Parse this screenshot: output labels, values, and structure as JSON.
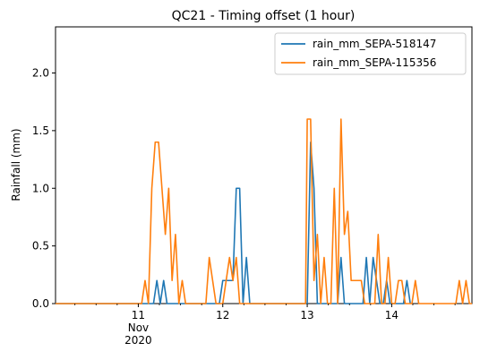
{
  "chart_data": {
    "type": "line",
    "title": "QC21 - Timing offset (1 hour)",
    "xlabel": "",
    "ylabel": "Rainfall (mm)",
    "ylim": [
      0,
      2.4
    ],
    "xlim": [
      -0.98,
      3.95
    ],
    "yticks": [
      0.0,
      0.5,
      1.0,
      1.5,
      2.0
    ],
    "ytick_labels": [
      "0.0",
      "0.5",
      "1.0",
      "1.5",
      "2.0"
    ],
    "xticks": [
      0,
      1,
      2,
      3
    ],
    "xtick_labels": [
      "11\nNov\n2020",
      "12",
      "13",
      "14"
    ],
    "x_units": "days from 2020-11-11",
    "legend": "top-right",
    "grid": false,
    "series": [
      {
        "name": "rain_mm_SEPA-518147",
        "color": "#1f77b4",
        "points": [
          [
            -0.98,
            0
          ],
          [
            0.18,
            0
          ],
          [
            0.22,
            0.2
          ],
          [
            0.26,
            0
          ],
          [
            0.3,
            0.2
          ],
          [
            0.34,
            0
          ],
          [
            0.96,
            0
          ],
          [
            1.0,
            0.2
          ],
          [
            1.04,
            0.2
          ],
          [
            1.08,
            0.2
          ],
          [
            1.12,
            0.2
          ],
          [
            1.16,
            1.0
          ],
          [
            1.2,
            1.0
          ],
          [
            1.24,
            0
          ],
          [
            1.28,
            0.4
          ],
          [
            1.32,
            0
          ],
          [
            2.0,
            0
          ],
          [
            2.04,
            1.4
          ],
          [
            2.08,
            1.0
          ],
          [
            2.12,
            0
          ],
          [
            2.36,
            0
          ],
          [
            2.4,
            0.4
          ],
          [
            2.44,
            0
          ],
          [
            2.66,
            0
          ],
          [
            2.7,
            0.4
          ],
          [
            2.74,
            0
          ],
          [
            2.78,
            0.4
          ],
          [
            2.82,
            0.2
          ],
          [
            2.86,
            0
          ],
          [
            2.9,
            0
          ],
          [
            2.94,
            0.2
          ],
          [
            2.98,
            0
          ],
          [
            3.14,
            0
          ],
          [
            3.18,
            0.2
          ],
          [
            3.22,
            0
          ]
        ]
      },
      {
        "name": "rain_mm_SEPA-115356",
        "color": "#ff7f0e",
        "points": [
          [
            -0.98,
            0
          ],
          [
            0.04,
            0
          ],
          [
            0.08,
            0.2
          ],
          [
            0.12,
            0
          ],
          [
            0.16,
            1.0
          ],
          [
            0.2,
            1.4
          ],
          [
            0.24,
            1.4
          ],
          [
            0.28,
            1.0
          ],
          [
            0.32,
            0.6
          ],
          [
            0.36,
            1.0
          ],
          [
            0.4,
            0.2
          ],
          [
            0.44,
            0.6
          ],
          [
            0.48,
            0
          ],
          [
            0.52,
            0.2
          ],
          [
            0.56,
            0
          ],
          [
            0.8,
            0
          ],
          [
            0.84,
            0.4
          ],
          [
            0.88,
            0.2
          ],
          [
            0.92,
            0
          ],
          [
            1.0,
            0
          ],
          [
            1.04,
            0.2
          ],
          [
            1.08,
            0.4
          ],
          [
            1.12,
            0.2
          ],
          [
            1.16,
            0.4
          ],
          [
            1.2,
            0
          ],
          [
            1.98,
            0
          ],
          [
            2.0,
            1.6
          ],
          [
            2.04,
            1.6
          ],
          [
            2.08,
            0.2
          ],
          [
            2.12,
            0.6
          ],
          [
            2.16,
            0
          ],
          [
            2.2,
            0.4
          ],
          [
            2.24,
            0
          ],
          [
            2.28,
            0
          ],
          [
            2.32,
            1.0
          ],
          [
            2.36,
            0
          ],
          [
            2.4,
            1.6
          ],
          [
            2.44,
            0.6
          ],
          [
            2.48,
            0.8
          ],
          [
            2.52,
            0.2
          ],
          [
            2.56,
            0.2
          ],
          [
            2.6,
            0.2
          ],
          [
            2.64,
            0.2
          ],
          [
            2.68,
            0
          ],
          [
            2.8,
            0
          ],
          [
            2.84,
            0.6
          ],
          [
            2.88,
            0
          ],
          [
            2.92,
            0
          ],
          [
            2.96,
            0.4
          ],
          [
            3.0,
            0
          ],
          [
            3.04,
            0
          ],
          [
            3.08,
            0.2
          ],
          [
            3.12,
            0.2
          ],
          [
            3.16,
            0
          ],
          [
            3.24,
            0
          ],
          [
            3.28,
            0.2
          ],
          [
            3.32,
            0
          ],
          [
            3.76,
            0
          ],
          [
            3.8,
            0.2
          ],
          [
            3.84,
            0
          ],
          [
            3.88,
            0.2
          ],
          [
            3.92,
            0
          ],
          [
            3.95,
            0
          ]
        ]
      }
    ]
  }
}
